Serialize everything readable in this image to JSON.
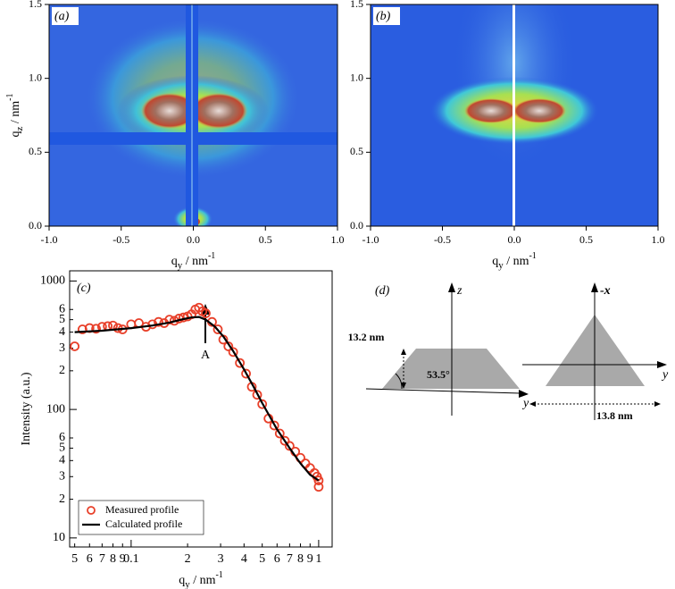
{
  "chart_data": [
    {
      "type": "heatmap",
      "panel_label": "(a)",
      "xlabel": {
        "symbol": "q",
        "subscript": "y",
        "unit": " / nm",
        "exponent": "-1"
      },
      "ylabel": {
        "symbol": "q",
        "subscript": "z",
        "unit": " / nm",
        "exponent": "-1"
      },
      "xlim": [
        -1,
        1
      ],
      "ylim": [
        0,
        1.5
      ],
      "xticks": [
        {
          "value": -1,
          "label": "-1.0"
        },
        {
          "value": -0.5,
          "label": "-0.5"
        },
        {
          "value": 0,
          "label": "0.0"
        },
        {
          "value": 0.5,
          "label": "0.5"
        },
        {
          "value": 1,
          "label": "1.0"
        }
      ],
      "yticks": [
        {
          "value": 0,
          "label": "0.0"
        },
        0.5,
        {
          "value": 1,
          "label": "1.0"
        },
        1.5
      ]
    },
    {
      "type": "heatmap",
      "panel_label": "(b)",
      "xlabel": {
        "symbol": "q",
        "subscript": "y",
        "unit": " / nm",
        "exponent": "-1"
      },
      "xlim": [
        -1,
        1
      ],
      "ylim": [
        0,
        1.5
      ],
      "xticks": [
        {
          "value": -1,
          "label": "-1.0"
        },
        {
          "value": -0.5,
          "label": "-0.5"
        },
        {
          "value": 0,
          "label": "0.0"
        },
        {
          "value": 0.5,
          "label": "0.5"
        },
        {
          "value": 1,
          "label": "1.0"
        }
      ],
      "yticks": [
        {
          "value": 0,
          "label": "0.0"
        },
        0.5,
        {
          "value": 1,
          "label": "1.0"
        },
        1.5
      ]
    },
    {
      "type": "scatter-line",
      "panel_label": "(c)",
      "log_x": true,
      "log_y": true,
      "xlabel": {
        "symbol": "q",
        "subscript": "y",
        "unit": " / nm",
        "exponent": "-1"
      },
      "ylabel": "Intensity (a.u.)",
      "annotation": "A",
      "xlim": [
        0.047,
        1.18
      ],
      "ylim": [
        8.5,
        1200
      ],
      "xticks": [
        {
          "value": 0.05,
          "label": "5"
        },
        {
          "value": 0.06,
          "label": "6"
        },
        {
          "value": 0.07,
          "label": "7"
        },
        {
          "value": 0.08,
          "label": "8"
        },
        {
          "value": 0.09,
          "label": "9"
        },
        0.1,
        {
          "value": 0.2,
          "label": "2"
        },
        {
          "value": 0.3,
          "label": "3"
        },
        {
          "value": 0.4,
          "label": "4"
        },
        {
          "value": 0.5,
          "label": "5"
        },
        {
          "value": 0.6,
          "label": "6"
        },
        {
          "value": 0.7,
          "label": "7"
        },
        {
          "value": 0.8,
          "label": "8"
        },
        {
          "value": 0.9,
          "label": "9"
        },
        1
      ],
      "yticks": [
        10,
        {
          "value": 20,
          "label": "2"
        },
        {
          "value": 30,
          "label": "3"
        },
        {
          "value": 40,
          "label": "4"
        },
        {
          "value": 50,
          "label": "5"
        },
        {
          "value": 60,
          "label": "6"
        },
        100,
        {
          "value": 200,
          "label": "2"
        },
        {
          "value": 300,
          "label": "3"
        },
        {
          "value": 400,
          "label": "4"
        },
        {
          "value": 500,
          "label": "5"
        },
        {
          "value": 600,
          "label": "6"
        },
        1000
      ],
      "legend": "bottom-left",
      "series": [
        {
          "name": "Measured profile",
          "color": "#e8402a",
          "mark": "circle",
          "x": [
            0.05,
            0.055,
            0.06,
            0.065,
            0.07,
            0.075,
            0.08,
            0.085,
            0.09,
            0.1,
            0.11,
            0.12,
            0.13,
            0.14,
            0.15,
            0.16,
            0.17,
            0.18,
            0.19,
            0.2,
            0.21,
            0.22,
            0.23,
            0.24,
            0.25,
            0.27,
            0.29,
            0.31,
            0.33,
            0.35,
            0.38,
            0.41,
            0.44,
            0.47,
            0.5,
            0.54,
            0.58,
            0.62,
            0.66,
            0.7,
            0.75,
            0.8,
            0.85,
            0.9,
            0.95,
            0.98,
            1.0,
            1.0
          ],
          "values": [
            310,
            420,
            430,
            425,
            440,
            445,
            450,
            430,
            420,
            460,
            470,
            440,
            460,
            480,
            470,
            500,
            490,
            510,
            520,
            530,
            550,
            600,
            620,
            580,
            560,
            480,
            420,
            350,
            310,
            280,
            230,
            190,
            150,
            130,
            110,
            85,
            75,
            65,
            57,
            52,
            47,
            42,
            38,
            35,
            32,
            30,
            28,
            25
          ]
        },
        {
          "name": "Calculated profile",
          "color": "#000000",
          "mark": "line",
          "x": [
            0.05,
            0.07,
            0.1,
            0.13,
            0.16,
            0.19,
            0.21,
            0.23,
            0.25,
            0.28,
            0.31,
            0.35,
            0.4,
            0.45,
            0.5,
            0.6,
            0.7,
            0.8,
            0.9,
            1.0
          ],
          "values": [
            400,
            410,
            430,
            450,
            475,
            505,
            520,
            525,
            500,
            440,
            370,
            285,
            205,
            150,
            112,
            70,
            50,
            38,
            31,
            28
          ]
        }
      ]
    }
  ],
  "diagram": {
    "panel_label": "(d)",
    "axis_z": "z",
    "height": "13.2 nm",
    "angle": "53.5°",
    "axis_y_left": "y",
    "axis_minus_x": "-x",
    "axis_y_right": "y",
    "width": "13.8 nm"
  }
}
